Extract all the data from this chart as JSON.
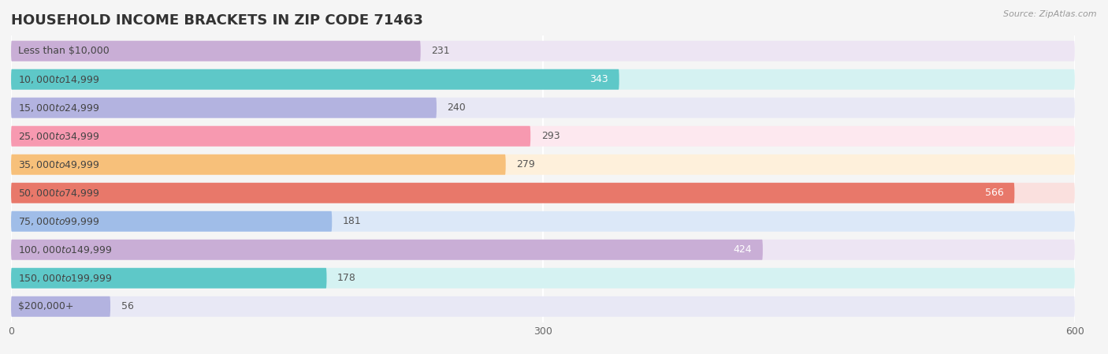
{
  "title": "HOUSEHOLD INCOME BRACKETS IN ZIP CODE 71463",
  "source": "Source: ZipAtlas.com",
  "categories": [
    "Less than $10,000",
    "$10,000 to $14,999",
    "$15,000 to $24,999",
    "$25,000 to $34,999",
    "$35,000 to $49,999",
    "$50,000 to $74,999",
    "$75,000 to $99,999",
    "$100,000 to $149,999",
    "$150,000 to $199,999",
    "$200,000+"
  ],
  "values": [
    231,
    343,
    240,
    293,
    279,
    566,
    181,
    424,
    178,
    56
  ],
  "bar_colors": [
    "#c9aed6",
    "#5ec8c8",
    "#b3b3e0",
    "#f799b0",
    "#f7c07a",
    "#e8786a",
    "#a0bde8",
    "#c9aed6",
    "#5ec8c8",
    "#b3b3e0"
  ],
  "bar_bg_colors": [
    "#ede5f3",
    "#d5f2f2",
    "#e8e8f5",
    "#fde8ef",
    "#fef0db",
    "#fae0de",
    "#dce8f8",
    "#ede5f3",
    "#d5f2f2",
    "#e8e8f5"
  ],
  "xlim": [
    0,
    600
  ],
  "xticks": [
    0,
    300,
    600
  ],
  "background_color": "#f5f5f5",
  "bar_height": 0.72,
  "title_fontsize": 13,
  "label_fontsize": 9,
  "value_fontsize": 9
}
